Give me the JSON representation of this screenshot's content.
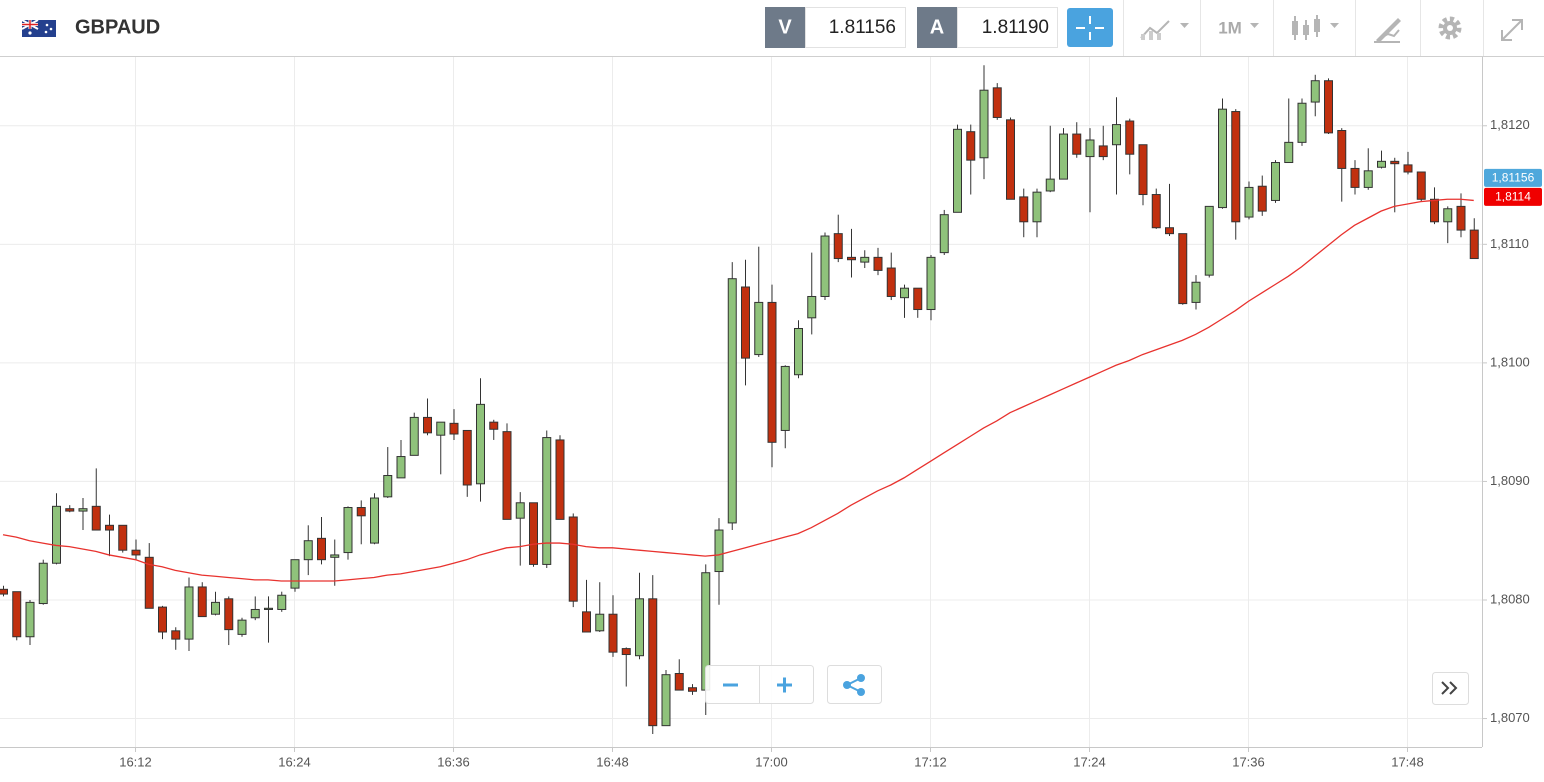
{
  "toolbar": {
    "sell": {
      "label": "V",
      "price": "1.81156"
    },
    "buy": {
      "label": "A",
      "price": "1.81190"
    },
    "timeframe": "1M"
  },
  "chart_data": {
    "type": "candlestick",
    "title": "GBPAUD",
    "categories": [
      null,
      null,
      null,
      null,
      null,
      null,
      null,
      null,
      null,
      null,
      "16:12",
      null,
      null,
      null,
      null,
      null,
      null,
      null,
      null,
      null,
      null,
      null,
      "16:24",
      null,
      null,
      null,
      null,
      null,
      null,
      null,
      null,
      null,
      null,
      null,
      "16:36",
      null,
      null,
      null,
      null,
      null,
      null,
      null,
      null,
      null,
      null,
      null,
      "16:48",
      null,
      null,
      null,
      null,
      null,
      null,
      null,
      null,
      null,
      null,
      null,
      "17:00",
      null,
      null,
      null,
      null,
      null,
      null,
      null,
      null,
      null,
      null,
      null,
      "17:12",
      null,
      null,
      null,
      null,
      null,
      null,
      null,
      null,
      null,
      null,
      null,
      "17:24",
      null,
      null,
      null,
      null,
      null,
      null,
      null,
      null,
      null,
      null,
      null,
      "17:36",
      null,
      null,
      null,
      null,
      null,
      null,
      null,
      null,
      null,
      null,
      null,
      "17:48",
      null,
      null,
      null,
      null,
      null
    ],
    "open": [
      1.80809,
      1.80807,
      1.80769,
      1.80797,
      1.80831,
      1.80877,
      1.80875,
      1.80879,
      1.80863,
      1.80863,
      1.80842,
      1.80836,
      1.80794,
      1.80774,
      1.80767,
      1.80811,
      1.80788,
      1.80801,
      1.80771,
      1.80785,
      1.80792,
      1.80792,
      1.8081,
      1.80834,
      1.80852,
      1.80836,
      1.8084,
      1.80878,
      1.80848,
      1.80887,
      1.80903,
      1.80922,
      1.80954,
      1.80939,
      1.80949,
      1.80943,
      1.80898,
      1.8095,
      1.80942,
      1.80869,
      1.80882,
      1.8083,
      1.80935,
      1.8087,
      1.8079,
      1.80774,
      1.80788,
      1.80759,
      1.80753,
      1.80801,
      1.80694,
      1.80738,
      1.80726,
      1.80724,
      1.80824,
      1.80865,
      1.81064,
      1.81007,
      1.81051,
      1.80943,
      1.8099,
      1.81038,
      1.81056,
      1.81109,
      1.81089,
      1.81085,
      1.81089,
      1.8108,
      1.81055,
      1.81063,
      1.81045,
      1.81093,
      1.81127,
      1.81195,
      1.81173,
      1.81232,
      1.81205,
      1.8114,
      1.81119,
      1.81145,
      1.81155,
      1.81193,
      1.81174,
      1.81183,
      1.81184,
      1.81204,
      1.81184,
      1.81142,
      1.81114,
      1.81109,
      1.81051,
      1.81074,
      1.81131,
      1.81212,
      1.81123,
      1.81149,
      1.81137,
      1.81169,
      1.81186,
      1.8122,
      1.81238,
      1.81196,
      1.81164,
      1.81148,
      1.81165,
      1.8117,
      1.81167,
      1.81161,
      1.81138,
      1.81119,
      1.81132,
      1.81112
    ],
    "high": [
      1.80812,
      1.80807,
      1.808,
      1.80834,
      1.8089,
      1.8088,
      1.80886,
      1.80911,
      1.80872,
      1.80863,
      1.80851,
      1.80848,
      1.80795,
      1.80777,
      1.80819,
      1.80815,
      1.80807,
      1.80803,
      1.80785,
      1.80803,
      1.80803,
      1.80807,
      1.80834,
      1.80863,
      1.8087,
      1.80851,
      1.80879,
      1.80884,
      1.8089,
      1.80929,
      1.80935,
      1.80958,
      1.8097,
      1.8095,
      1.80961,
      1.80943,
      1.80987,
      1.80952,
      1.80949,
      1.80891,
      1.80882,
      1.80943,
      1.80939,
      1.80873,
      1.80817,
      1.80815,
      1.80804,
      1.8076,
      1.80823,
      1.80821,
      1.80741,
      1.8075,
      1.80729,
      1.8083,
      1.80869,
      1.81085,
      1.81087,
      1.81098,
      1.81066,
      1.80998,
      1.81036,
      1.81093,
      1.8111,
      1.81125,
      1.81113,
      1.81095,
      1.81097,
      1.81093,
      1.81066,
      1.81063,
      1.81091,
      1.81129,
      1.81201,
      1.81201,
      1.81251,
      1.81236,
      1.81207,
      1.81147,
      1.81147,
      1.812,
      1.81198,
      1.81203,
      1.81198,
      1.812,
      1.81224,
      1.81206,
      1.81184,
      1.81147,
      1.81151,
      1.81109,
      1.81074,
      1.81132,
      1.81223,
      1.81214,
      1.81153,
      1.81158,
      1.81171,
      1.81223,
      1.81223,
      1.81243,
      1.8124,
      1.81198,
      1.81171,
      1.81181,
      1.81179,
      1.81173,
      1.81178,
      1.81161,
      1.81148,
      1.81132,
      1.81143,
      1.81122
    ],
    "low": [
      1.80803,
      1.80766,
      1.80762,
      1.80796,
      1.8083,
      1.80874,
      1.80859,
      1.80859,
      1.80837,
      1.8084,
      1.80834,
      1.80793,
      1.80767,
      1.80758,
      1.80757,
      1.80786,
      1.80787,
      1.80762,
      1.80769,
      1.80783,
      1.80764,
      1.8079,
      1.80807,
      1.80821,
      1.8083,
      1.80812,
      1.80834,
      1.80847,
      1.80847,
      1.80886,
      1.80903,
      1.80922,
      1.80939,
      1.80906,
      1.80935,
      1.80887,
      1.80883,
      1.80935,
      1.80868,
      1.80829,
      1.80828,
      1.80827,
      1.80868,
      1.80794,
      1.80773,
      1.80773,
      1.80752,
      1.80727,
      1.8075,
      1.80687,
      1.80694,
      1.80724,
      1.8072,
      1.80703,
      1.80796,
      1.80859,
      1.80981,
      1.81005,
      1.80912,
      1.80928,
      1.80987,
      1.81024,
      1.81053,
      1.81085,
      1.81072,
      1.8108,
      1.81074,
      1.81053,
      1.81038,
      1.81038,
      1.81036,
      1.81091,
      1.81127,
      1.81142,
      1.81155,
      1.81205,
      1.81138,
      1.81106,
      1.81106,
      1.81144,
      1.81155,
      1.81173,
      1.81127,
      1.81171,
      1.81142,
      1.81159,
      1.81133,
      1.81113,
      1.81107,
      1.81049,
      1.81045,
      1.81072,
      1.8113,
      1.81104,
      1.81121,
      1.81124,
      1.81135,
      1.81169,
      1.81183,
      1.81208,
      1.81193,
      1.81136,
      1.81142,
      1.81146,
      1.81164,
      1.81127,
      1.81159,
      1.81136,
      1.81117,
      1.81101,
      1.81106,
      1.81088
    ],
    "close": [
      1.80805,
      1.80769,
      1.80798,
      1.80831,
      1.80879,
      1.80875,
      1.80877,
      1.80859,
      1.80859,
      1.80842,
      1.80838,
      1.80793,
      1.80773,
      1.80767,
      1.80811,
      1.80786,
      1.80798,
      1.80775,
      1.80783,
      1.80792,
      1.80793,
      1.80804,
      1.80834,
      1.8085,
      1.80834,
      1.80838,
      1.80878,
      1.80871,
      1.80886,
      1.80905,
      1.80921,
      1.80954,
      1.80941,
      1.8095,
      1.8094,
      1.80897,
      1.80965,
      1.80944,
      1.80868,
      1.80882,
      1.8083,
      1.80937,
      1.80868,
      1.80799,
      1.80773,
      1.80788,
      1.80756,
      1.80754,
      1.80801,
      1.80694,
      1.80737,
      1.80724,
      1.80723,
      1.80823,
      1.80859,
      1.81071,
      1.81004,
      1.81051,
      1.80933,
      1.80997,
      1.81029,
      1.81056,
      1.81107,
      1.81088,
      1.81087,
      1.81089,
      1.81078,
      1.81056,
      1.81063,
      1.81045,
      1.81089,
      1.81125,
      1.81197,
      1.81171,
      1.8123,
      1.81207,
      1.81138,
      1.81119,
      1.81144,
      1.81155,
      1.81193,
      1.81176,
      1.81188,
      1.81174,
      1.81201,
      1.81176,
      1.81142,
      1.81114,
      1.81109,
      1.8105,
      1.81068,
      1.81132,
      1.81214,
      1.81119,
      1.81148,
      1.81128,
      1.81169,
      1.81186,
      1.81219,
      1.81238,
      1.81194,
      1.81164,
      1.81148,
      1.81162,
      1.8117,
      1.81168,
      1.81161,
      1.81138,
      1.81119,
      1.8113,
      1.81112,
      1.81088
    ],
    "up_color": "#8fc27b",
    "down_color": "#c1300f",
    "line_series": [
      {
        "color": "#e8322e",
        "values": [
          1.80855,
          1.80853,
          1.8085,
          1.80848,
          1.80846,
          1.80845,
          1.80843,
          1.80841,
          1.80838,
          1.80836,
          1.80834,
          1.8083,
          1.80828,
          1.80825,
          1.80823,
          1.80821,
          1.8082,
          1.80819,
          1.80818,
          1.80817,
          1.80817,
          1.80816,
          1.80816,
          1.80816,
          1.80816,
          1.80816,
          1.80817,
          1.80818,
          1.80819,
          1.80821,
          1.80822,
          1.80824,
          1.80826,
          1.80828,
          1.80831,
          1.80834,
          1.80838,
          1.80841,
          1.80844,
          1.80845,
          1.80847,
          1.80848,
          1.80848,
          1.80847,
          1.80845,
          1.80844,
          1.80844,
          1.80843,
          1.80842,
          1.80841,
          1.8084,
          1.80839,
          1.80838,
          1.80837,
          1.80838,
          1.80841,
          1.80844,
          1.80847,
          1.8085,
          1.80853,
          1.80856,
          1.80861,
          1.80867,
          1.80873,
          1.8088,
          1.80886,
          1.80892,
          1.80897,
          1.80903,
          1.8091,
          1.80917,
          1.80924,
          1.80931,
          1.80938,
          1.80945,
          1.80951,
          1.80958,
          1.80963,
          1.80968,
          1.80973,
          1.80978,
          1.80983,
          1.80988,
          1.80993,
          1.80998,
          1.81002,
          1.81007,
          1.81011,
          1.81015,
          1.81019,
          1.81024,
          1.8103,
          1.81037,
          1.81044,
          1.81052,
          1.81059,
          1.81066,
          1.81073,
          1.81081,
          1.8109,
          1.81099,
          1.81108,
          1.81116,
          1.81122,
          1.81128,
          1.81132,
          1.81134,
          1.81136,
          1.81137,
          1.81138,
          1.81138,
          1.81137
        ]
      }
    ],
    "price_tags": [
      {
        "value": 1.81156,
        "label": "1,81156",
        "color": "#4fa8dc"
      },
      {
        "value": 1.8114,
        "label": "1,8114",
        "color": "#f00000"
      }
    ],
    "ylim": [
      1.80676,
      1.81258
    ],
    "yticks": [
      {
        "value": 1.807,
        "label": "1,8070"
      },
      {
        "value": 1.808,
        "label": "1,8080"
      },
      {
        "value": 1.809,
        "label": "1,8090"
      },
      {
        "value": 1.81,
        "label": "1,8100"
      },
      {
        "value": 1.811,
        "label": "1,8110"
      },
      {
        "value": 1.812,
        "label": "1,8120"
      }
    ],
    "grid": true
  }
}
